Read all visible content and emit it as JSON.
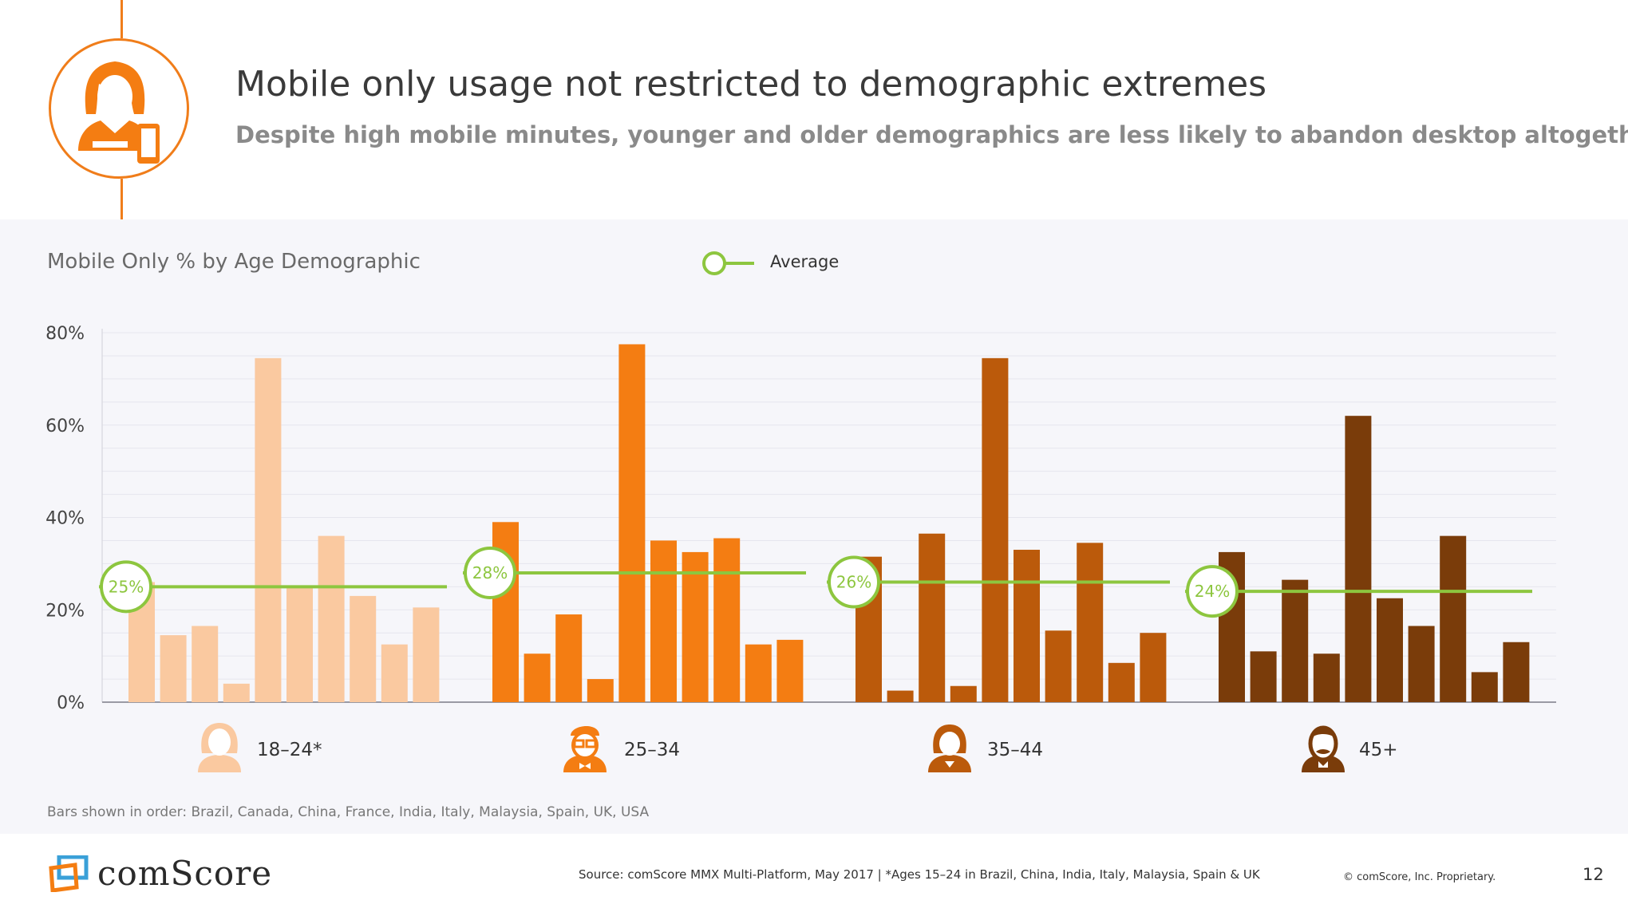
{
  "header": {
    "title": "Mobile only usage not restricted to demographic extremes",
    "subtitle": "Despite high mobile minutes, younger and older demographics are less likely to abandon desktop altogether"
  },
  "chart_title": "Mobile Only % by Age Demographic",
  "legend": {
    "average_label": "Average",
    "average_color": "#8dc63f"
  },
  "footnote": "Bars shown in order: Brazil, Canada, China, France, India, Italy, Malaysia, Spain, UK, USA",
  "footer": {
    "brand": "comScore",
    "source": "Source: comScore MMX Multi-Platform, May 2017 | *Ages 15–24 in Brazil, China, India, Italy, Malaysia, Spain & UK",
    "copyright": "© comScore, Inc. Proprietary.",
    "page_number": "12"
  },
  "icons": [
    "woman-mobile-icon",
    "young-woman-icon",
    "man-glasses-icon",
    "woman-icon",
    "man-mustache-icon"
  ],
  "chart_data": {
    "type": "bar",
    "y_ticks": [
      "80%",
      "60%",
      "40%",
      "20%",
      "0%"
    ],
    "ylim": [
      0,
      80
    ],
    "countries": [
      "Brazil",
      "Canada",
      "China",
      "France",
      "India",
      "Italy",
      "Malaysia",
      "Spain",
      "UK",
      "USA"
    ],
    "groups": [
      {
        "label": "18–24*",
        "color": "#fac9a0",
        "average": 25,
        "average_label": "25%",
        "values": [
          26,
          14.5,
          16.5,
          4,
          74.5,
          25,
          36,
          23,
          12.5,
          20.5
        ]
      },
      {
        "label": "25–34",
        "color": "#f47d12",
        "average": 28,
        "average_label": "28%",
        "values": [
          39,
          10.5,
          19,
          5,
          77.5,
          35,
          32.5,
          35.5,
          12.5,
          13.5
        ]
      },
      {
        "label": "35–44",
        "color": "#bb5a0b",
        "average": 26,
        "average_label": "26%",
        "values": [
          31.5,
          2.5,
          36.5,
          3.5,
          74.5,
          33,
          15.5,
          34.5,
          8.5,
          15
        ]
      },
      {
        "label": "45+",
        "color": "#7a3c0a",
        "average": 24,
        "average_label": "24%",
        "values": [
          32.5,
          11,
          26.5,
          10.5,
          62,
          22.5,
          16.5,
          36,
          6.5,
          13
        ]
      }
    ]
  }
}
